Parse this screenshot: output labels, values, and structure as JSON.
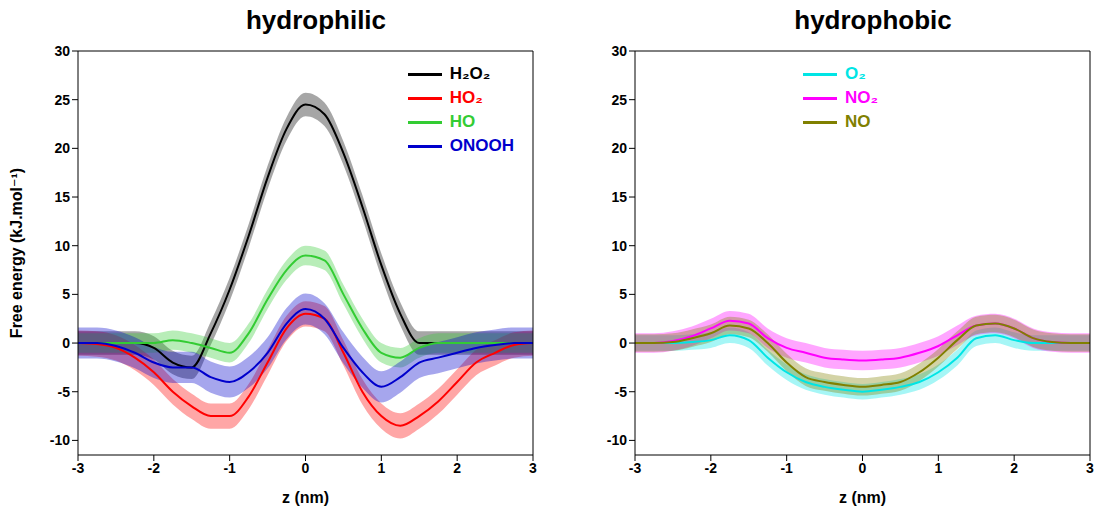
{
  "chart_data": [
    {
      "type": "line",
      "title": "hydrophilic",
      "x_label": "z (nm)",
      "y_label": "Free energy (kJ.mol⁻¹)",
      "x": [
        -3,
        -2.75,
        -2.5,
        -2.25,
        -2,
        -1.75,
        -1.5,
        -1.25,
        -1,
        -0.75,
        -0.5,
        -0.25,
        0,
        0.25,
        0.5,
        0.75,
        1,
        1.25,
        1.5,
        1.75,
        2,
        2.25,
        2.5,
        2.75,
        3
      ],
      "xlim": [
        -3,
        3
      ],
      "xticks": [
        -3,
        -2,
        -1,
        0,
        1,
        2,
        3
      ],
      "ylim": [
        -11.5,
        30
      ],
      "yticks": [
        -10,
        -5,
        0,
        5,
        10,
        15,
        20,
        25,
        30
      ],
      "grid": false,
      "legend": "upper right",
      "series": [
        {
          "name": "H₂O₂",
          "color": "#000000",
          "error": 1.2,
          "values": [
            0,
            0,
            0,
            0,
            -0.5,
            -2,
            -2.5,
            1,
            5.5,
            11,
            17,
            22,
            24.5,
            23.5,
            19.5,
            14,
            8,
            3,
            0,
            0,
            0,
            0,
            0,
            0,
            0
          ]
        },
        {
          "name": "HO₂",
          "color": "#ff0000",
          "error": 1.3,
          "values": [
            0,
            -0.1,
            -0.5,
            -1.5,
            -3,
            -5,
            -6.5,
            -7.5,
            -7.5,
            -5.5,
            -2,
            1.5,
            3,
            2.5,
            -1,
            -5,
            -7.5,
            -8.5,
            -7.5,
            -6,
            -4,
            -2,
            -1,
            -0.2,
            0
          ]
        },
        {
          "name": "HO",
          "color": "#33cc33",
          "error": 1,
          "values": [
            0,
            0,
            0,
            0,
            0,
            0.3,
            0,
            -0.5,
            -1,
            1,
            4.5,
            7.5,
            9,
            8.5,
            5,
            1.5,
            -1,
            -1.5,
            -0.5,
            0,
            0,
            0,
            0,
            0,
            0
          ]
        },
        {
          "name": "ONOOH",
          "color": "#0000cc",
          "error": 1.6,
          "values": [
            0,
            0,
            -0.3,
            -1,
            -2,
            -2.5,
            -2.5,
            -3.5,
            -4,
            -3,
            -1,
            2,
            3.5,
            2.5,
            -0.5,
            -3,
            -4.5,
            -3.5,
            -2,
            -1.5,
            -1,
            -0.5,
            -0.2,
            0,
            0
          ]
        }
      ]
    },
    {
      "type": "line",
      "title": "hydrophobic",
      "x_label": "z (nm)",
      "x": [
        -3,
        -2.75,
        -2.5,
        -2.25,
        -2,
        -1.75,
        -1.5,
        -1.25,
        -1,
        -0.75,
        -0.5,
        -0.25,
        0,
        0.25,
        0.5,
        0.75,
        1,
        1.25,
        1.5,
        1.75,
        2,
        2.25,
        2.5,
        2.75,
        3
      ],
      "xlim": [
        -3,
        3
      ],
      "xticks": [
        -3,
        -2,
        -1,
        0,
        1,
        2,
        3
      ],
      "ylim": [
        -11.5,
        30
      ],
      "yticks": [
        -10,
        -5,
        0,
        5,
        10,
        15,
        20,
        25,
        30
      ],
      "grid": false,
      "legend": "upper center",
      "series": [
        {
          "name": "O₂",
          "color": "#00e5e5",
          "error": 0.8,
          "values": [
            0,
            0,
            0,
            0.1,
            0.3,
            0.8,
            0.3,
            -1.5,
            -3,
            -4,
            -4.5,
            -4.8,
            -5,
            -4.8,
            -4.5,
            -4,
            -3,
            -1.5,
            0.5,
            0.8,
            0.3,
            0,
            0,
            0,
            0
          ]
        },
        {
          "name": "NO₂",
          "color": "#ff00ff",
          "error": 1,
          "values": [
            0,
            0,
            0.2,
            0.7,
            1.5,
            2.3,
            2,
            0.5,
            -0.5,
            -1,
            -1.5,
            -1.7,
            -1.8,
            -1.7,
            -1.5,
            -1,
            -0.3,
            0.8,
            1.8,
            2,
            1.5,
            0.5,
            0.1,
            0,
            0
          ]
        },
        {
          "name": "NO",
          "color": "#808000",
          "error": 0.9,
          "values": [
            0,
            0,
            0.1,
            0.5,
            1,
            1.8,
            1.5,
            0,
            -2,
            -3.5,
            -4,
            -4.3,
            -4.5,
            -4.3,
            -4,
            -3,
            -1.5,
            0.3,
            1.8,
            2,
            1.5,
            0.5,
            0.1,
            0,
            0
          ]
        }
      ]
    }
  ]
}
